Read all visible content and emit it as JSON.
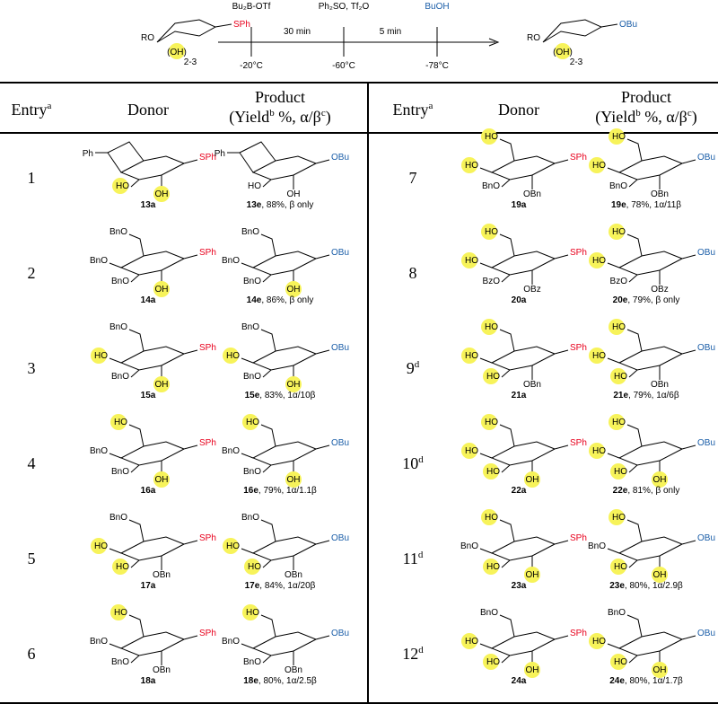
{
  "scheme": {
    "start_ro": "RO",
    "start_oh": "(OH)",
    "range": "2-3",
    "start_sph": "SPh",
    "reagents": [
      "Bu₂B-OTf",
      "Ph₂SO, Tf₂O",
      "BuOH"
    ],
    "times": [
      "30 min",
      "5 min"
    ],
    "temps": [
      "-20°C",
      "-60°C",
      "-78°C"
    ],
    "end_ro": "RO",
    "end_oh": "(OH)",
    "end_range": "2-3",
    "end_obu": "OBu"
  },
  "colors": {
    "SPh": "#e8001c",
    "OBu": "#1b5ea8"
  },
  "header": {
    "entry": "Entry",
    "entry_sup": "a",
    "donor": "Donor",
    "product": "Product",
    "yield_parts": [
      "(Yield",
      "b",
      " %, α/β",
      "c",
      ")"
    ]
  },
  "rows": [
    {
      "entry": "1",
      "donor": {
        "acetal": "Ph",
        "c3": "HO",
        "c2": "OH",
        "c1": "SPh",
        "highlight": [
          "c3",
          "c2"
        ],
        "id": "13a"
      },
      "product": {
        "acetal": "Ph",
        "c3": "HO",
        "c2": "OH",
        "c1": "OBu",
        "highlight": [],
        "id": "13e",
        "yield": ", 88%, β only"
      }
    },
    {
      "entry": "2",
      "donor": {
        "c6": "BnO",
        "c4": "BnO",
        "c3": "BnO",
        "c2": "OH",
        "c1": "SPh",
        "highlight": [
          "c2"
        ],
        "id": "14a"
      },
      "product": {
        "c6": "BnO",
        "c4": "BnO",
        "c3": "BnO",
        "c2": "OH",
        "c1": "OBu",
        "highlight": [
          "c2"
        ],
        "id": "14e",
        "yield": ", 86%, β only"
      }
    },
    {
      "entry": "3",
      "donor": {
        "c6": "BnO",
        "c4": "HO",
        "c3": "BnO",
        "c2": "OH",
        "c1": "SPh",
        "highlight": [
          "c4",
          "c2"
        ],
        "id": "15a"
      },
      "product": {
        "c6": "BnO",
        "c4": "HO",
        "c3": "BnO",
        "c2": "OH",
        "c1": "OBu",
        "highlight": [
          "c4",
          "c2"
        ],
        "id": "15e",
        "yield": ", 83%, 1α/10β"
      }
    },
    {
      "entry": "4",
      "donor": {
        "c6": "HO",
        "c4": "BnO",
        "c3": "BnO",
        "c2": "OH",
        "c1": "SPh",
        "highlight": [
          "c6",
          "c2"
        ],
        "id": "16a"
      },
      "product": {
        "c6": "HO",
        "c4": "BnO",
        "c3": "BnO",
        "c2": "OH",
        "c1": "OBu",
        "highlight": [
          "c6",
          "c2"
        ],
        "id": "16e",
        "yield": ", 79%, 1α/1.1β"
      }
    },
    {
      "entry": "5",
      "donor": {
        "c6": "BnO",
        "c4": "HO",
        "c3": "HO",
        "c2": "OBn",
        "c1": "SPh",
        "highlight": [
          "c4",
          "c3"
        ],
        "id": "17a"
      },
      "product": {
        "c6": "BnO",
        "c4": "HO",
        "c3": "HO",
        "c2": "OBn",
        "c1": "OBu",
        "highlight": [
          "c4",
          "c3"
        ],
        "id": "17e",
        "yield": ", 84%, 1α/20β"
      }
    },
    {
      "entry": "6",
      "donor": {
        "c6": "HO",
        "c4": "BnO",
        "c3": "BnO",
        "c2": "OBn",
        "c1": "SPh",
        "highlight": [
          "c6"
        ],
        "id": "18a"
      },
      "product": {
        "c6": "HO",
        "c4": "BnO",
        "c3": "BnO",
        "c2": "OBn",
        "c1": "OBu",
        "highlight": [
          "c6"
        ],
        "id": "18e",
        "yield": ", 80%, 1α/2.5β"
      }
    },
    {
      "entry": "7",
      "donor": {
        "c6": "HO",
        "c4": "HO",
        "c3": "BnO",
        "c2": "OBn",
        "c1": "SPh",
        "highlight": [
          "c6",
          "c4"
        ],
        "id": "19a"
      },
      "product": {
        "c6": "HO",
        "c4": "HO",
        "c3": "BnO",
        "c2": "OBn",
        "c1": "OBu",
        "highlight": [
          "c6",
          "c4"
        ],
        "id": "19e",
        "yield": ", 78%, 1α/11β"
      }
    },
    {
      "entry": "8",
      "donor": {
        "c6": "HO",
        "c4": "HO",
        "c3": "BzO",
        "c2": "OBz",
        "c1": "SPh",
        "highlight": [
          "c6",
          "c4"
        ],
        "id": "20a"
      },
      "product": {
        "c6": "HO",
        "c4": "HO",
        "c3": "BzO",
        "c2": "OBz",
        "c1": "OBu",
        "highlight": [
          "c6",
          "c4"
        ],
        "id": "20e",
        "yield": ", 79%, β only"
      }
    },
    {
      "entry": "9",
      "sup": "d",
      "donor": {
        "c6": "HO",
        "c4": "HO",
        "c3": "HO",
        "c2": "OBn",
        "c1": "SPh",
        "highlight": [
          "c6",
          "c4",
          "c3"
        ],
        "id": "21a"
      },
      "product": {
        "c6": "HO",
        "c4": "HO",
        "c3": "HO",
        "c2": "OBn",
        "c1": "OBu",
        "highlight": [
          "c6",
          "c4",
          "c3"
        ],
        "id": "21e",
        "yield": ", 79%, 1α/6β"
      }
    },
    {
      "entry": "10",
      "sup": "d",
      "donor": {
        "c6": "HO",
        "c4": "HO",
        "c3": "HO",
        "c2": "OH",
        "c1": "SPh",
        "highlight": [
          "c6",
          "c4",
          "c3",
          "c2"
        ],
        "id": "22a"
      },
      "product": {
        "c6": "HO",
        "c4": "HO",
        "c3": "HO",
        "c2": "OH",
        "c1": "OBu",
        "highlight": [
          "c6",
          "c4",
          "c3",
          "c2"
        ],
        "id": "22e",
        "yield": ", 81%, β only"
      }
    },
    {
      "entry": "11",
      "sup": "d",
      "donor": {
        "c6": "HO",
        "c4": "BnO",
        "c3": "HO",
        "c2": "OH",
        "c1": "SPh",
        "highlight": [
          "c6",
          "c3",
          "c2"
        ],
        "id": "23a"
      },
      "product": {
        "c6": "HO",
        "c4": "BnO",
        "c3": "HO",
        "c2": "OH",
        "c1": "OBu",
        "highlight": [
          "c6",
          "c3",
          "c2"
        ],
        "id": "23e",
        "yield": ", 80%, 1α/2.9β"
      }
    },
    {
      "entry": "12",
      "sup": "d",
      "donor": {
        "c6": "BnO",
        "c4": "HO",
        "c3": "HO",
        "c2": "OH",
        "c1": "SPh",
        "highlight": [
          "c4",
          "c3",
          "c2"
        ],
        "id": "24a"
      },
      "product": {
        "c6": "BnO",
        "c4": "HO",
        "c3": "HO",
        "c2": "OH",
        "c1": "OBu",
        "highlight": [
          "c4",
          "c3",
          "c2"
        ],
        "id": "24e",
        "yield": ", 80%, 1α/1.7β"
      }
    }
  ]
}
